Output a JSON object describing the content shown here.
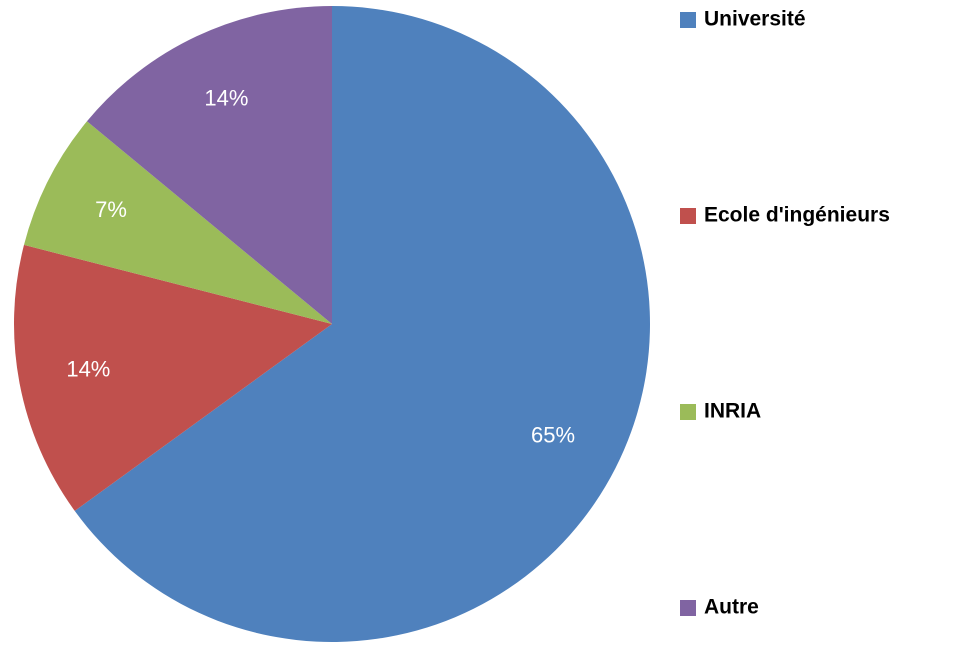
{
  "chart_data": {
    "type": "pie",
    "categories": [
      "Université",
      "Ecole d'ingénieurs",
      "INRIA",
      "Autre"
    ],
    "values": [
      65,
      14,
      7,
      14
    ],
    "value_labels": [
      "65%",
      "14%",
      "7%",
      "14%"
    ],
    "colors": [
      "#4f81bd",
      "#c0504d",
      "#9bbb59",
      "#8064a2"
    ],
    "legend": "right"
  }
}
